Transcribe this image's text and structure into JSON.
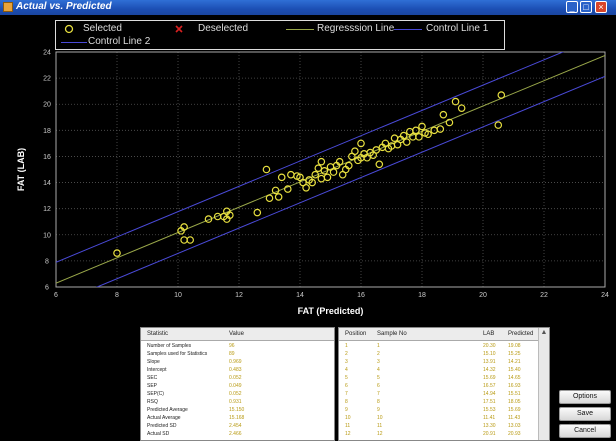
{
  "window": {
    "title": "Actual vs. Predicted",
    "min": "_",
    "max": "□",
    "close": "×"
  },
  "legend": {
    "selected": "Selected",
    "deselected": "Deselected",
    "regression": "Regresssion Line",
    "control1": "Control Line 1",
    "control2": "Control Line 2"
  },
  "colors": {
    "point": "#e8e040",
    "regression": "#9aa84a",
    "control": "#4a4ad8",
    "grid": "#555555"
  },
  "chart_data": {
    "type": "scatter",
    "xlabel": "FAT (Predicted)",
    "ylabel": "FAT (LAB)",
    "xlim": [
      6,
      24
    ],
    "ylim": [
      6,
      24
    ],
    "xticks": [
      6,
      8,
      10,
      12,
      14,
      16,
      18,
      20,
      22,
      24
    ],
    "yticks": [
      6,
      8,
      10,
      12,
      14,
      16,
      18,
      20,
      22,
      24
    ],
    "grid": true,
    "legend_position": "top",
    "regression": [
      0.969,
      0.483
    ],
    "control_offset": 1.6,
    "points": [
      [
        8,
        8.6
      ],
      [
        10.1,
        10.3
      ],
      [
        10.2,
        10.6
      ],
      [
        10.2,
        9.6
      ],
      [
        10.4,
        9.6
      ],
      [
        11,
        11.2
      ],
      [
        11.3,
        11.4
      ],
      [
        11.5,
        11.4
      ],
      [
        11.6,
        11.8
      ],
      [
        11.6,
        11.2
      ],
      [
        11.7,
        11.5
      ],
      [
        12.6,
        11.7
      ],
      [
        12.9,
        15
      ],
      [
        13.0,
        12.8
      ],
      [
        13.2,
        13.4
      ],
      [
        13.3,
        12.9
      ],
      [
        13.4,
        14.4
      ],
      [
        13.6,
        13.5
      ],
      [
        13.7,
        14.6
      ],
      [
        13.9,
        14.5
      ],
      [
        14.0,
        14.4
      ],
      [
        14.1,
        14.0
      ],
      [
        14.2,
        13.6
      ],
      [
        14.3,
        14.2
      ],
      [
        14.4,
        14.0
      ],
      [
        14.5,
        14.6
      ],
      [
        14.6,
        15.1
      ],
      [
        14.7,
        14.3
      ],
      [
        14.7,
        15.6
      ],
      [
        14.8,
        14.9
      ],
      [
        14.9,
        14.4
      ],
      [
        15.0,
        15.2
      ],
      [
        15.1,
        14.8
      ],
      [
        15.2,
        15.3
      ],
      [
        15.3,
        15.6
      ],
      [
        15.4,
        14.6
      ],
      [
        15.5,
        15.0
      ],
      [
        15.6,
        15.3
      ],
      [
        15.7,
        16.0
      ],
      [
        15.8,
        16.4
      ],
      [
        15.9,
        15.7
      ],
      [
        16.0,
        15.9
      ],
      [
        16.0,
        17.0
      ],
      [
        16.1,
        16.2
      ],
      [
        16.2,
        15.9
      ],
      [
        16.3,
        16.3
      ],
      [
        16.4,
        16.1
      ],
      [
        16.5,
        16.5
      ],
      [
        16.6,
        15.4
      ],
      [
        16.7,
        16.7
      ],
      [
        16.8,
        17.0
      ],
      [
        16.9,
        16.6
      ],
      [
        17.0,
        16.8
      ],
      [
        17.1,
        17.4
      ],
      [
        17.2,
        16.9
      ],
      [
        17.3,
        17.3
      ],
      [
        17.4,
        17.6
      ],
      [
        17.5,
        17.1
      ],
      [
        17.6,
        17.9
      ],
      [
        17.7,
        17.5
      ],
      [
        17.8,
        18.0
      ],
      [
        17.9,
        17.5
      ],
      [
        18.0,
        18.3
      ],
      [
        18.1,
        17.8
      ],
      [
        18.2,
        17.7
      ],
      [
        18.4,
        18.0
      ],
      [
        18.6,
        18.1
      ],
      [
        18.7,
        19.2
      ],
      [
        18.9,
        18.6
      ],
      [
        19.1,
        20.2
      ],
      [
        19.3,
        19.7
      ],
      [
        20.5,
        18.4
      ],
      [
        20.6,
        20.7
      ]
    ]
  },
  "stats": {
    "headers": [
      "Statistic",
      "Value"
    ],
    "rows": [
      [
        "Number of Samples",
        "96"
      ],
      [
        "Samples used for Statistics",
        "89"
      ],
      [
        "Slope",
        "0.969"
      ],
      [
        "Intercept",
        "0.483"
      ],
      [
        "SEC",
        "0.052"
      ],
      [
        "SEP",
        "0.049"
      ],
      [
        "SEP(C)",
        "0.052"
      ],
      [
        "RSQ",
        "0.931"
      ],
      [
        "Predicted Average",
        "15.150"
      ],
      [
        "Actual Average",
        "15.168"
      ],
      [
        "Predicted SD",
        "2.454"
      ],
      [
        "Actual SD",
        "2.466"
      ]
    ]
  },
  "samples": {
    "headers": [
      "Position",
      "Sample No",
      "LAB",
      "Predicted"
    ],
    "rows": [
      [
        "1",
        "1",
        "20.30",
        "19.08"
      ],
      [
        "2",
        "2",
        "15.10",
        "15.25"
      ],
      [
        "3",
        "3",
        "13.91",
        "14.21"
      ],
      [
        "4",
        "4",
        "14.32",
        "15.40"
      ],
      [
        "5",
        "5",
        "15.69",
        "14.65"
      ],
      [
        "6",
        "6",
        "16.57",
        "16.93"
      ],
      [
        "7",
        "7",
        "14.94",
        "15.51"
      ],
      [
        "8",
        "8",
        "17.51",
        "18.05"
      ],
      [
        "9",
        "9",
        "15.53",
        "15.69"
      ],
      [
        "10",
        "10",
        "11.41",
        "11.43"
      ],
      [
        "11",
        "11",
        "13.30",
        "13.03"
      ],
      [
        "12",
        "12",
        "20.91",
        "20.93"
      ]
    ]
  },
  "buttons": {
    "options": "Options",
    "save": "Save Selections",
    "cancel": "Cancel"
  }
}
